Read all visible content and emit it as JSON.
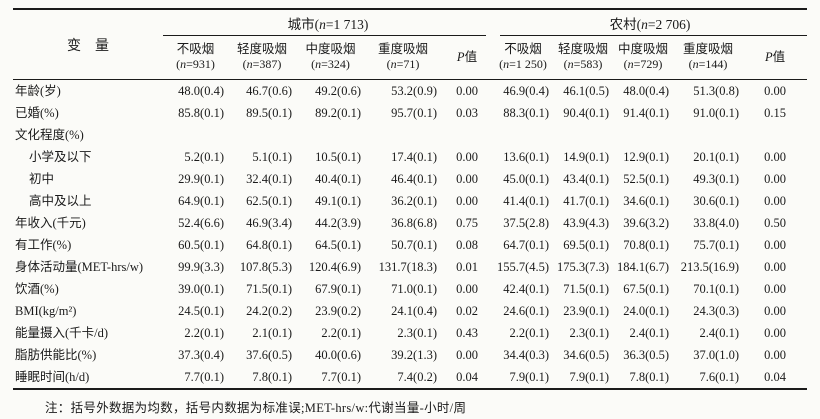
{
  "table": {
    "header": {
      "variable": "变　量",
      "open_paren": "(",
      "close_paren": ")",
      "n_symbol": "n",
      "p_label": {
        "italic": "P",
        "text": "值"
      },
      "groups": [
        {
          "name": "城市",
          "count": "=1 713",
          "subcols": [
            {
              "label": "不吸烟",
              "count": "=931"
            },
            {
              "label": "轻度吸烟",
              "count": "=387"
            },
            {
              "label": "中度吸烟",
              "count": "=324"
            },
            {
              "label": "重度吸烟",
              "count": "=71"
            }
          ]
        },
        {
          "name": "农村",
          "count": "=2 706",
          "subcols": [
            {
              "label": "不吸烟",
              "count": "=1 250"
            },
            {
              "label": "轻度吸烟",
              "count": "=583"
            },
            {
              "label": "中度吸烟",
              "count": "=729"
            },
            {
              "label": "重度吸烟",
              "count": "=144"
            }
          ]
        }
      ]
    },
    "rows": [
      {
        "label": "年龄(岁)",
        "indent": false,
        "urban": [
          "48.0(0.4)",
          "46.7(0.6)",
          "49.2(0.6)",
          "53.2(0.9)"
        ],
        "urban_p": "0.00",
        "rural": [
          "46.9(0.4)",
          "46.1(0.5)",
          "48.0(0.4)",
          "51.3(0.8)"
        ],
        "rural_p": "0.00"
      },
      {
        "label": "已婚(%)",
        "indent": false,
        "urban": [
          "85.8(0.1)",
          "89.5(0.1)",
          "89.2(0.1)",
          "95.7(0.1)"
        ],
        "urban_p": "0.03",
        "rural": [
          "88.3(0.1)",
          "90.4(0.1)",
          "91.4(0.1)",
          "91.0(0.1)"
        ],
        "rural_p": "0.15"
      },
      {
        "label": "文化程度(%)",
        "indent": false,
        "urban": [
          "",
          "",
          "",
          ""
        ],
        "urban_p": "",
        "rural": [
          "",
          "",
          "",
          ""
        ],
        "rural_p": ""
      },
      {
        "label": "小学及以下",
        "indent": true,
        "urban": [
          "5.2(0.1)",
          "5.1(0.1)",
          "10.5(0.1)",
          "17.4(0.1)"
        ],
        "urban_p": "0.00",
        "rural": [
          "13.6(0.1)",
          "14.9(0.1)",
          "12.9(0.1)",
          "20.1(0.1)"
        ],
        "rural_p": "0.00"
      },
      {
        "label": "初中",
        "indent": true,
        "urban": [
          "29.9(0.1)",
          "32.4(0.1)",
          "40.4(0.1)",
          "46.4(0.1)"
        ],
        "urban_p": "0.00",
        "rural": [
          "45.0(0.1)",
          "43.4(0.1)",
          "52.5(0.1)",
          "49.3(0.1)"
        ],
        "rural_p": "0.00"
      },
      {
        "label": "高中及以上",
        "indent": true,
        "urban": [
          "64.9(0.1)",
          "62.5(0.1)",
          "49.1(0.1)",
          "36.2(0.1)"
        ],
        "urban_p": "0.00",
        "rural": [
          "41.4(0.1)",
          "41.7(0.1)",
          "34.6(0.1)",
          "30.6(0.1)"
        ],
        "rural_p": "0.00"
      },
      {
        "label": "年收入(千元)",
        "indent": false,
        "urban": [
          "52.4(6.6)",
          "46.9(3.4)",
          "44.2(3.9)",
          "36.8(6.8)"
        ],
        "urban_p": "0.75",
        "rural": [
          "37.5(2.8)",
          "43.9(4.3)",
          "39.6(3.2)",
          "33.8(4.0)"
        ],
        "rural_p": "0.50"
      },
      {
        "label": "有工作(%)",
        "indent": false,
        "urban": [
          "60.5(0.1)",
          "64.8(0.1)",
          "64.5(0.1)",
          "50.7(0.1)"
        ],
        "urban_p": "0.08",
        "rural": [
          "64.7(0.1)",
          "69.5(0.1)",
          "70.8(0.1)",
          "75.7(0.1)"
        ],
        "rural_p": "0.00"
      },
      {
        "label": "身体活动量(MET-hrs/w)",
        "indent": false,
        "urban": [
          "99.9(3.3)",
          "107.8(5.3)",
          "120.4(6.9)",
          "131.7(18.3)"
        ],
        "urban_p": "0.01",
        "rural": [
          "155.7(4.5)",
          "175.3(7.3)",
          "184.1(6.7)",
          "213.5(16.9)"
        ],
        "rural_p": "0.00"
      },
      {
        "label": "饮酒(%)",
        "indent": false,
        "urban": [
          "39.0(0.1)",
          "71.5(0.1)",
          "67.9(0.1)",
          "71.0(0.1)"
        ],
        "urban_p": "0.00",
        "rural": [
          "42.4(0.1)",
          "71.5(0.1)",
          "67.5(0.1)",
          "70.1(0.1)"
        ],
        "rural_p": "0.00"
      },
      {
        "label": "BMI(kg/m²)",
        "indent": false,
        "urban": [
          "24.5(0.1)",
          "24.2(0.2)",
          "23.9(0.2)",
          "24.1(0.4)"
        ],
        "urban_p": "0.02",
        "rural": [
          "24.6(0.1)",
          "23.9(0.1)",
          "24.0(0.1)",
          "24.3(0.3)"
        ],
        "rural_p": "0.00"
      },
      {
        "label": "能量摄入(千卡/d)",
        "indent": false,
        "urban": [
          "2.2(0.1)",
          "2.1(0.1)",
          "2.2(0.1)",
          "2.3(0.1)"
        ],
        "urban_p": "0.43",
        "rural": [
          "2.2(0.1)",
          "2.3(0.1)",
          "2.4(0.1)",
          "2.4(0.1)"
        ],
        "rural_p": "0.00"
      },
      {
        "label": "脂肪供能比(%)",
        "indent": false,
        "urban": [
          "37.3(0.4)",
          "37.6(0.5)",
          "40.0(0.6)",
          "39.2(1.3)"
        ],
        "urban_p": "0.00",
        "rural": [
          "34.4(0.3)",
          "34.6(0.5)",
          "36.3(0.5)",
          "37.0(1.0)"
        ],
        "rural_p": "0.00"
      },
      {
        "label": "睡眠时间(h/d)",
        "indent": false,
        "urban": [
          "7.7(0.1)",
          "7.8(0.1)",
          "7.7(0.1)",
          "7.4(0.2)"
        ],
        "urban_p": "0.04",
        "rural": [
          "7.9(0.1)",
          "7.9(0.1)",
          "7.8(0.1)",
          "7.6(0.1)"
        ],
        "rural_p": "0.04"
      }
    ],
    "note": "注：括号外数据为均数，括号内数据为标准误;MET-hrs/w:代谢当量-小时/周"
  }
}
